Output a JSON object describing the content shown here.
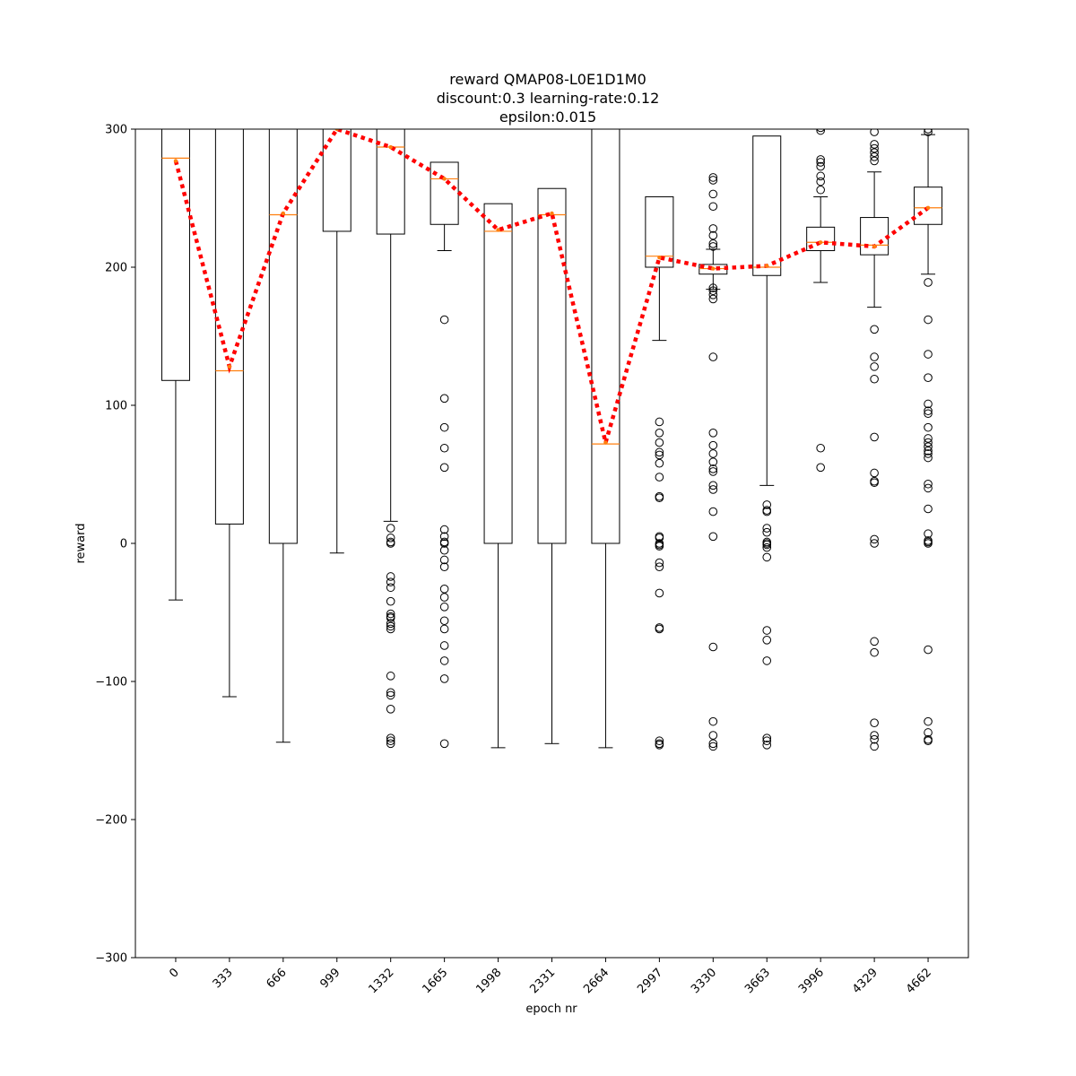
{
  "chart_data": {
    "type": "box",
    "title_lines": [
      "reward QMAP08-L0E1D1M0",
      "discount:0.3 learning-rate:0.12",
      "epsilon:0.015"
    ],
    "xlabel": "epoch nr",
    "ylabel": "reward",
    "ylim": [
      -300,
      300
    ],
    "y_ticks": [
      -300,
      -200,
      -100,
      0,
      100,
      200,
      300
    ],
    "y_tick_labels": [
      "−300",
      "−200",
      "−100",
      "0",
      "100",
      "200",
      "300"
    ],
    "categories": [
      "0",
      "333",
      "666",
      "999",
      "1332",
      "1665",
      "1998",
      "2331",
      "2664",
      "2997",
      "3330",
      "3663",
      "3996",
      "4329",
      "4662"
    ],
    "boxes": [
      {
        "q1": 118,
        "median": 279,
        "q3": 300,
        "whisker_low": -41,
        "whisker_high": null,
        "outliers": []
      },
      {
        "q1": 14,
        "median": 125,
        "q3": 300,
        "whisker_low": -111,
        "whisker_high": null,
        "outliers": []
      },
      {
        "q1": 0,
        "median": 238,
        "q3": 300,
        "whisker_low": -144,
        "whisker_high": null,
        "outliers": []
      },
      {
        "q1": 226,
        "median": 305,
        "q3": 305,
        "whisker_low": -7,
        "whisker_high": null,
        "outliers": []
      },
      {
        "q1": 224,
        "median": 287,
        "q3": 300,
        "whisker_low": 16,
        "whisker_high": null,
        "outliers": [
          11,
          4,
          1,
          0,
          -24,
          -28,
          -32,
          -42,
          -51,
          -53,
          -54,
          -58,
          -60,
          -62,
          -96,
          -108,
          -110,
          -120,
          -141,
          -143,
          -145
        ]
      },
      {
        "q1": 231,
        "median": 264,
        "q3": 276,
        "whisker_low": 212,
        "whisker_high": null,
        "outliers": [
          162,
          105,
          84,
          69,
          55,
          10,
          5,
          1,
          0,
          -5,
          -12,
          -17,
          -33,
          -39,
          -46,
          -56,
          -62,
          -74,
          -85,
          -98,
          -145
        ]
      },
      {
        "q1": 0,
        "median": 226,
        "q3": 246,
        "whisker_low": -148,
        "whisker_high": null,
        "outliers": []
      },
      {
        "q1": 0,
        "median": 238,
        "q3": 257,
        "whisker_low": -145,
        "whisker_high": null,
        "outliers": []
      },
      {
        "q1": 0,
        "median": 72,
        "q3": 300,
        "whisker_low": -148,
        "whisker_high": null,
        "outliers": []
      },
      {
        "q1": 200,
        "median": 208,
        "q3": 251,
        "whisker_low": 147,
        "whisker_high": null,
        "outliers": [
          88,
          80,
          73,
          66,
          64,
          58,
          48,
          34,
          33,
          5,
          4,
          0,
          -1,
          -2,
          -14,
          -17,
          -36,
          -61,
          -62,
          -143,
          -145,
          -146
        ]
      },
      {
        "q1": 195,
        "median": 199,
        "q3": 202,
        "whisker_low": 184,
        "whisker_high": 213,
        "outliers": [
          265,
          263,
          253,
          244,
          228,
          223,
          217,
          215,
          185,
          183,
          180,
          177,
          135,
          80,
          71,
          65,
          59,
          54,
          52,
          42,
          39,
          23,
          5,
          -75,
          -129,
          -139,
          -145,
          -147
        ]
      },
      {
        "q1": 194,
        "median": 200,
        "q3": 295,
        "whisker_low": 42,
        "whisker_high": null,
        "outliers": [
          28,
          24,
          23,
          11,
          8,
          1,
          0,
          -1,
          -3,
          -10,
          -63,
          -70,
          -85,
          -141,
          -143,
          -146
        ]
      },
      {
        "q1": 212,
        "median": 218,
        "q3": 229,
        "whisker_low": 189,
        "whisker_high": 251,
        "outliers": [
          301,
          299,
          278,
          276,
          273,
          266,
          262,
          256,
          69,
          55
        ]
      },
      {
        "q1": 209,
        "median": 216,
        "q3": 236,
        "whisker_low": 171,
        "whisker_high": 269,
        "outliers": [
          298,
          289,
          286,
          283,
          280,
          277,
          155,
          135,
          128,
          119,
          77,
          51,
          45,
          44,
          3,
          0,
          -71,
          -79,
          -130,
          -139,
          -142,
          -147
        ]
      },
      {
        "q1": 231,
        "median": 243,
        "q3": 258,
        "whisker_low": 195,
        "whisker_high": 296,
        "outliers": [
          300,
          298,
          189,
          162,
          137,
          120,
          101,
          96,
          94,
          84,
          76,
          73,
          70,
          67,
          65,
          62,
          43,
          40,
          25,
          7,
          2,
          1,
          0,
          -77,
          -129,
          -137,
          -142,
          -143
        ]
      }
    ],
    "mean_line": {
      "values": [
        277,
        128,
        239,
        300,
        287,
        264,
        227,
        239,
        73,
        207,
        199,
        201,
        218,
        215,
        243
      ],
      "color": "#ff0000",
      "style": "dotted"
    },
    "median_color": "#ff7f0e",
    "box_color": "#000000",
    "outlier_style": "open-circle"
  }
}
